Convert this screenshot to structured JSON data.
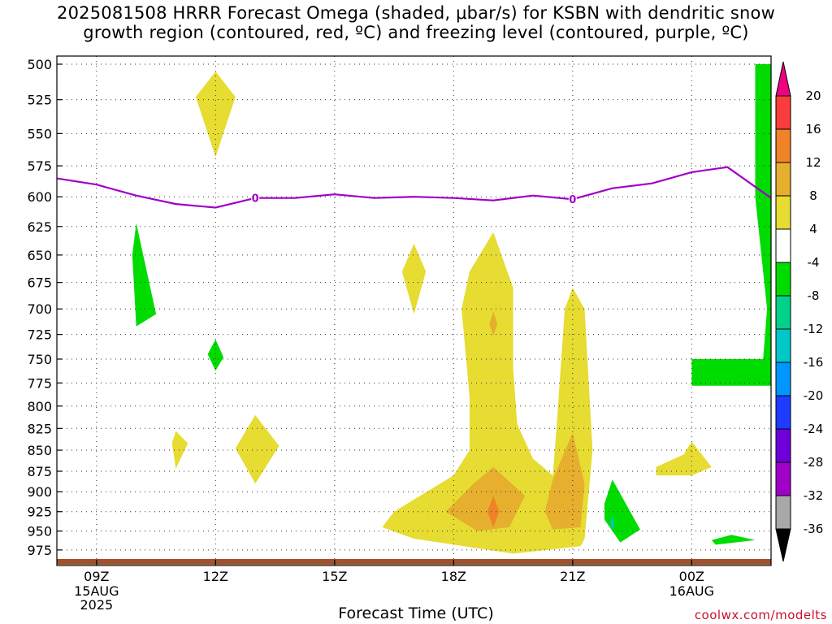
{
  "title": {
    "line1": "2025081508 HRRR Forecast Omega (shaded, μbar/s) for KSBN with dendritic snow",
    "line2": "growth region (contoured, red, ºC) and freezing level (contoured, purple, ºC)"
  },
  "credit": "coolwx.com/modelts",
  "chart_data": {
    "type": "contour",
    "title": "2025081508 HRRR Forecast Omega (shaded, μbar/s) for KSBN with dendritic snow growth region (contoured, red, ºC) and freezing level (contoured, purple, ºC)",
    "xlabel": "Forecast Time (UTC)",
    "ylabel": "",
    "x_ticks": [
      {
        "hour": 9,
        "label": "09Z",
        "sub": [
          "15AUG",
          "2025"
        ]
      },
      {
        "hour": 12,
        "label": "12Z",
        "sub": []
      },
      {
        "hour": 15,
        "label": "15Z",
        "sub": []
      },
      {
        "hour": 18,
        "label": "18Z",
        "sub": []
      },
      {
        "hour": 21,
        "label": "21Z",
        "sub": []
      },
      {
        "hour": 24,
        "label": "00Z",
        "sub": [
          "16AUG"
        ]
      }
    ],
    "xlim_hours": [
      8,
      26
    ],
    "y_levels": [
      500,
      525,
      550,
      575,
      600,
      625,
      650,
      675,
      700,
      725,
      750,
      775,
      800,
      825,
      850,
      875,
      900,
      925,
      950,
      975
    ],
    "ylim_hPa": [
      500,
      985
    ],
    "y_scale": "log-pressure",
    "grid": true,
    "colorbar": {
      "levels": [
        -36,
        -32,
        -28,
        -24,
        -20,
        -16,
        -12,
        -8,
        -4,
        4,
        8,
        12,
        16,
        20
      ],
      "colors": [
        "#a8a8a8",
        "#a000c8",
        "#6e00dc",
        "#1e3cff",
        "#0096ff",
        "#00c8c8",
        "#00d28c",
        "#00dc00",
        "#ffffff",
        "#e6dc32",
        "#e6af2d",
        "#f08228",
        "#fa3c3c",
        "#f00082"
      ],
      "low_extend_color": "#000000",
      "high_extend_color": "#f00082"
    },
    "freezing_level": {
      "color": "#a000c8",
      "label": "0",
      "points": [
        [
          8,
          585
        ],
        [
          9,
          590
        ],
        [
          10,
          599
        ],
        [
          11,
          606
        ],
        [
          12,
          609
        ],
        [
          13,
          601
        ],
        [
          14,
          601
        ],
        [
          15,
          598
        ],
        [
          16,
          601
        ],
        [
          17,
          600
        ],
        [
          18,
          601
        ],
        [
          19,
          603
        ],
        [
          20,
          599
        ],
        [
          21,
          602
        ],
        [
          22,
          593
        ],
        [
          23,
          589
        ],
        [
          24,
          580
        ],
        [
          24.9,
          576
        ],
        [
          26,
          601
        ]
      ],
      "label_hours": [
        13,
        21
      ]
    },
    "omega_regions": [
      {
        "class": "4 to 8",
        "points": [
          [
            12,
            505
          ],
          [
            12.5,
            523
          ],
          [
            12,
            568
          ],
          [
            11.5,
            523
          ]
        ]
      },
      {
        "class": "-8 to -4",
        "points": [
          [
            10,
            622
          ],
          [
            10.5,
            705
          ],
          [
            10,
            717
          ],
          [
            9.9,
            650
          ]
        ]
      },
      {
        "class": "-8 to -4",
        "points": [
          [
            12,
            730
          ],
          [
            12.2,
            748
          ],
          [
            12,
            762
          ],
          [
            11.8,
            745
          ]
        ]
      },
      {
        "class": "4 to 8",
        "points": [
          [
            17,
            640
          ],
          [
            17.3,
            665
          ],
          [
            17,
            705
          ],
          [
            16.7,
            665
          ]
        ]
      },
      {
        "class": "4 to 8",
        "points": [
          [
            19,
            630
          ],
          [
            19.5,
            680
          ],
          [
            19.5,
            760
          ],
          [
            19.6,
            820
          ],
          [
            20,
            860
          ],
          [
            20.5,
            880
          ],
          [
            20.6,
            820
          ],
          [
            20.8,
            700
          ],
          [
            21,
            680
          ],
          [
            21.3,
            700
          ],
          [
            21.5,
            850
          ],
          [
            21.3,
            960
          ],
          [
            21.2,
            970
          ],
          [
            19.5,
            980
          ],
          [
            17,
            960
          ],
          [
            16.2,
            945
          ],
          [
            16.5,
            925
          ],
          [
            18,
            880
          ],
          [
            18.4,
            850
          ],
          [
            18.4,
            790
          ],
          [
            18.2,
            700
          ],
          [
            18.4,
            665
          ]
        ]
      },
      {
        "class": "8 to 12",
        "points": [
          [
            19,
            702
          ],
          [
            19.1,
            715
          ],
          [
            19,
            726
          ],
          [
            18.9,
            715
          ]
        ]
      },
      {
        "class": "8 to 12",
        "points": [
          [
            19,
            870
          ],
          [
            19.8,
            905
          ],
          [
            19.4,
            945
          ],
          [
            18.6,
            950
          ],
          [
            17.8,
            925
          ],
          [
            18.5,
            890
          ]
        ]
      },
      {
        "class": "12 to 16",
        "points": [
          [
            19,
            905
          ],
          [
            19.15,
            925
          ],
          [
            19,
            945
          ],
          [
            18.85,
            925
          ]
        ]
      },
      {
        "class": "8 to 12",
        "points": [
          [
            21,
            830
          ],
          [
            21.3,
            890
          ],
          [
            21.2,
            945
          ],
          [
            20.5,
            948
          ],
          [
            20.3,
            925
          ],
          [
            20.5,
            885
          ]
        ]
      },
      {
        "class": "4 to 8",
        "points": [
          [
            13,
            810
          ],
          [
            13.6,
            845
          ],
          [
            13,
            890
          ],
          [
            12.5,
            848
          ]
        ]
      },
      {
        "class": "4 to 8",
        "points": [
          [
            11,
            828
          ],
          [
            11.3,
            842
          ],
          [
            11,
            872
          ],
          [
            10.9,
            842
          ]
        ]
      },
      {
        "class": "-8 to -4",
        "points": [
          [
            22,
            885
          ],
          [
            22.7,
            948
          ],
          [
            22.2,
            965
          ],
          [
            21.8,
            935
          ],
          [
            21.8,
            915
          ]
        ]
      },
      {
        "class": "-16 to -12",
        "points": [
          [
            22,
            930
          ],
          [
            22.05,
            942
          ],
          [
            22,
            948
          ],
          [
            21.95,
            940
          ]
        ]
      },
      {
        "class": "4 to 8",
        "points": [
          [
            24,
            840
          ],
          [
            24.5,
            870
          ],
          [
            24,
            880
          ],
          [
            23.1,
            880
          ],
          [
            23.1,
            870
          ],
          [
            23.8,
            855
          ]
        ]
      },
      {
        "class": "-8 to -4",
        "points": [
          [
            25,
            955
          ],
          [
            25.6,
            962
          ],
          [
            24.6,
            968
          ],
          [
            24.5,
            962
          ]
        ]
      },
      {
        "class": "-8 to -4",
        "points": [
          [
            26,
            500
          ],
          [
            26,
            778
          ],
          [
            24,
            778
          ],
          [
            24,
            750
          ],
          [
            25.8,
            750
          ],
          [
            25.9,
            700
          ],
          [
            25.6,
            600
          ],
          [
            25.6,
            500
          ]
        ]
      }
    ]
  }
}
